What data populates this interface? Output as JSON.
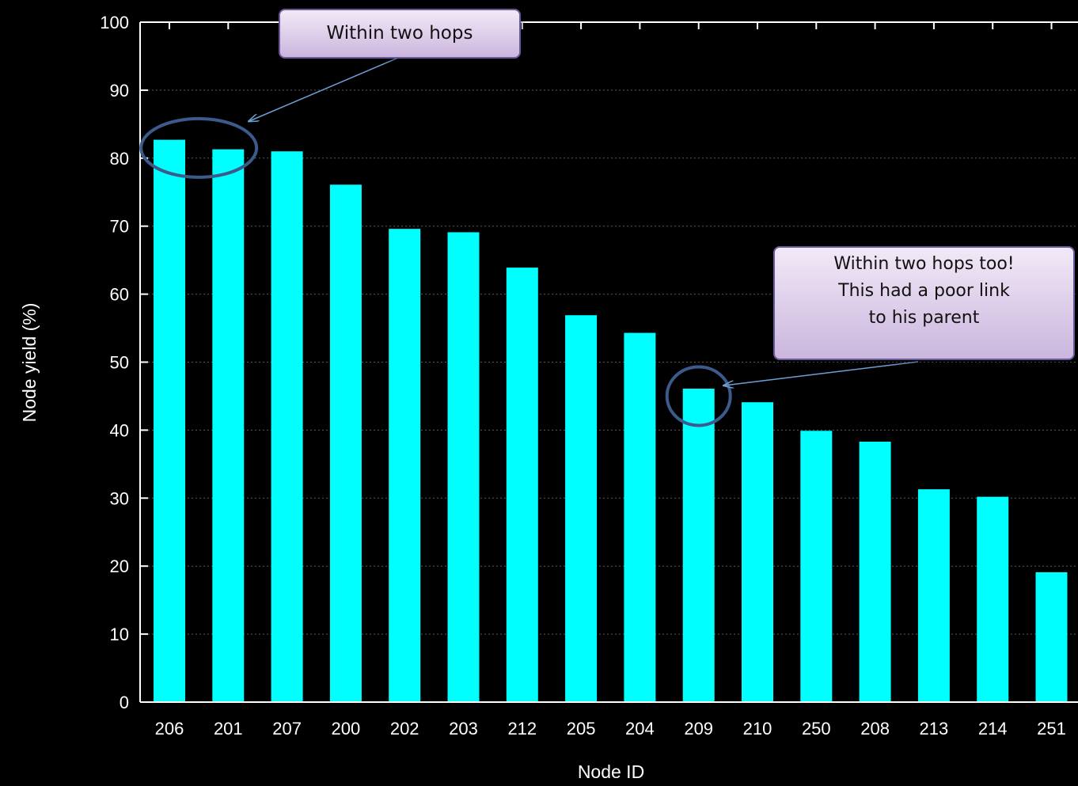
{
  "chart_data": {
    "type": "bar",
    "categories": [
      "206",
      "201",
      "207",
      "200",
      "202",
      "203",
      "212",
      "205",
      "204",
      "209",
      "210",
      "250",
      "208",
      "213",
      "214",
      "251"
    ],
    "values": [
      82.7,
      81.3,
      81.0,
      76.1,
      69.6,
      69.1,
      63.9,
      56.9,
      54.3,
      46.1,
      44.1,
      39.9,
      38.3,
      31.3,
      30.2,
      19.1
    ],
    "xlabel": "Node ID",
    "ylabel": "Node yield (%)",
    "ylim": [
      0,
      100
    ],
    "yticks": [
      0,
      10,
      20,
      30,
      40,
      50,
      60,
      70,
      80,
      90,
      100
    ],
    "grid": true,
    "bar_color": "#00ffff",
    "annotations": [
      {
        "text": "Within two hops",
        "targets": [
          "206",
          "201"
        ]
      },
      {
        "lines": [
          "Within two hops too!",
          "This had a poor link",
          "to his parent"
        ],
        "targets": [
          "209"
        ]
      }
    ]
  },
  "colors": {
    "background": "#000000",
    "bar": "#00ffff",
    "axis": "#ffffff",
    "callout_border": "#6a5a9a",
    "arrow": "#6f9fd8",
    "ellipse": "#3d5a8c"
  }
}
